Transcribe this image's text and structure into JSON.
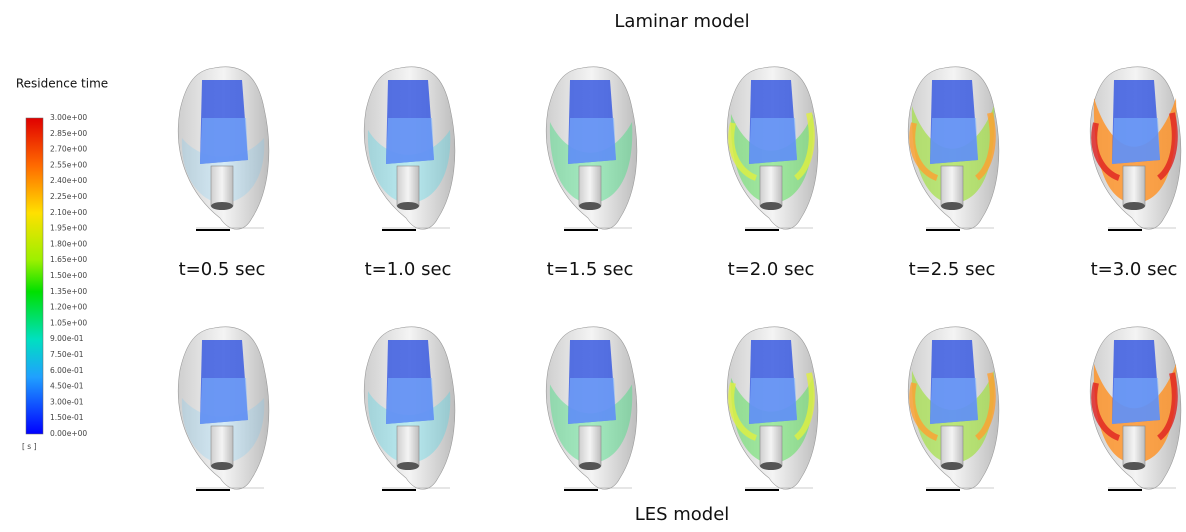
{
  "rows": [
    {
      "title": "Laminar model"
    },
    {
      "title": "LES model"
    }
  ],
  "times": [
    "t=0.5 sec",
    "t=1.0 sec",
    "t=1.5 sec",
    "t=2.0 sec",
    "t=2.5 sec",
    "t=3.0 sec"
  ],
  "legend": {
    "title": "Residence time",
    "labels": [
      "3.00e+00",
      "2.85e+00",
      "2.70e+00",
      "2.55e+00",
      "2.40e+00",
      "2.25e+00",
      "2.10e+00",
      "1.95e+00",
      "1.80e+00",
      "1.65e+00",
      "1.50e+00",
      "1.35e+00",
      "1.20e+00",
      "1.05e+00",
      "9.00e-01",
      "7.50e-01",
      "6.00e-01",
      "4.50e-01",
      "3.00e-01",
      "1.50e-01",
      "0.00e+00"
    ],
    "unit": "[ s ]"
  }
}
